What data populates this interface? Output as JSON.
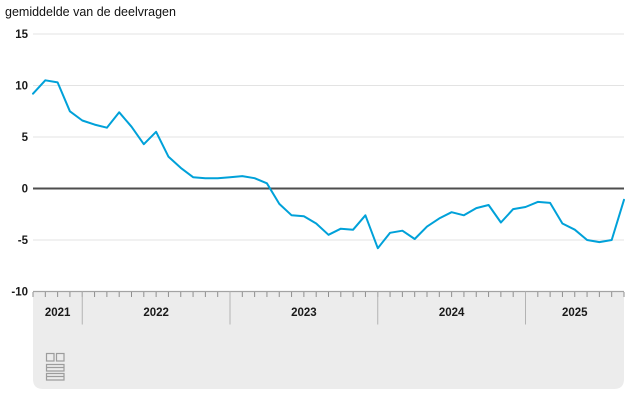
{
  "page": {
    "title": "gemiddelde van de deelvragen"
  },
  "chart_data": {
    "type": "line",
    "title": "gemiddelde van de deelvragen",
    "x_unit": "month",
    "x": [
      "2021-09",
      "2021-10",
      "2021-11",
      "2021-12",
      "2022-01",
      "2022-02",
      "2022-03",
      "2022-04",
      "2022-05",
      "2022-06",
      "2022-07",
      "2022-08",
      "2022-09",
      "2022-10",
      "2022-11",
      "2022-12",
      "2023-01",
      "2023-02",
      "2023-03",
      "2023-04",
      "2023-05",
      "2023-06",
      "2023-07",
      "2023-08",
      "2023-09",
      "2023-10",
      "2023-11",
      "2023-12",
      "2024-01",
      "2024-02",
      "2024-03",
      "2024-04",
      "2024-05",
      "2024-06",
      "2024-07",
      "2024-08",
      "2024-09",
      "2024-10",
      "2024-11",
      "2024-12",
      "2025-01",
      "2025-02",
      "2025-03",
      "2025-04",
      "2025-05",
      "2025-06",
      "2025-07",
      "2025-08",
      "2025-09"
    ],
    "series": [
      {
        "name": "gemiddelde van de deelvragen",
        "color": "#00a1d9",
        "values": [
          9.2,
          10.5,
          10.3,
          7.5,
          6.6,
          6.2,
          5.9,
          7.4,
          6.0,
          4.3,
          5.5,
          3.1,
          2.0,
          1.1,
          1.0,
          1.0,
          1.1,
          1.2,
          1.0,
          0.5,
          -1.5,
          -2.6,
          -2.7,
          -3.4,
          -4.5,
          -3.9,
          -4.0,
          -2.6,
          -5.8,
          -4.3,
          -4.1,
          -4.9,
          -3.7,
          -2.9,
          -2.3,
          -2.6,
          -1.9,
          -1.6,
          -3.3,
          -2.0,
          -1.8,
          -1.3,
          -1.4,
          -3.4,
          -4.0,
          -5.0,
          -5.2,
          -5.0,
          -1.1
        ]
      }
    ],
    "ylim": [
      -10,
      15
    ],
    "y_ticks": [
      15,
      10,
      5,
      0,
      -5,
      -10
    ],
    "x_year_labels": [
      "2021",
      "2022",
      "2023",
      "2024",
      "2025"
    ],
    "grid": true,
    "zero_line": true,
    "legend": "none"
  },
  "colors": {
    "line": "#00a1d9",
    "grid": "#e3e3e3",
    "zero_line": "#4d4d4d",
    "axis_band": "#ececec",
    "axis_band_border": "#a3a3a3",
    "tick": "#8f8f8f",
    "year_separator": "#b3b3b3",
    "label": "#1a1a1a",
    "background": "#ffffff",
    "logo": "#9c9c9c"
  },
  "icons": {
    "logo": "cbs-logo"
  }
}
